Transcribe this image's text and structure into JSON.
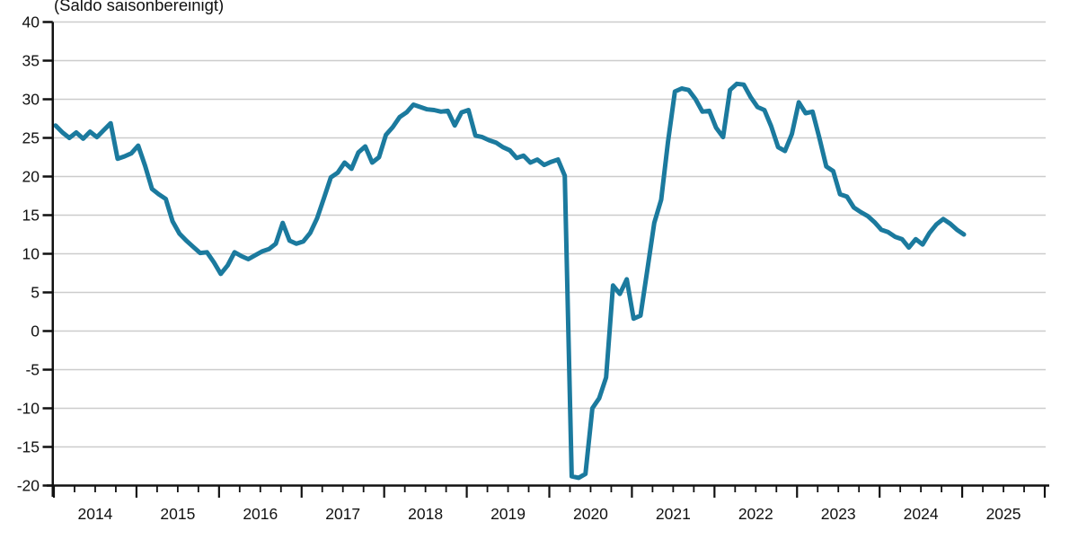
{
  "chart": {
    "subtitle": "(Saldo saisonbereinigt)"
  },
  "chart_data": {
    "type": "line",
    "title": "(Saldo saisonbereinigt)",
    "frequency": "monthly",
    "start": "2014-01",
    "end": "2025-01",
    "x_tick_years": [
      "2014",
      "2015",
      "2016",
      "2017",
      "2018",
      "2019",
      "2020",
      "2021",
      "2022",
      "2023",
      "2024",
      "2025"
    ],
    "x_minor_ticks": "quarterly",
    "y_ticks": [
      40,
      35,
      30,
      25,
      20,
      15,
      10,
      5,
      0,
      -5,
      -10,
      -15,
      -20
    ],
    "ylim": [
      -20,
      40
    ],
    "grid": true,
    "legend": "none",
    "colors": {
      "line": "#1b7a9e",
      "grid": "#cccccc",
      "axis": "#111111",
      "background": "#ffffff"
    },
    "series": [
      {
        "name": "Saldo saisonbereinigt",
        "color": "#1b7a9e",
        "values": [
          26.6,
          25.7,
          25.0,
          25.7,
          24.9,
          25.8,
          25.1,
          26.0,
          26.9,
          22.3,
          22.6,
          23.0,
          24.0,
          21.4,
          18.4,
          17.7,
          17.1,
          14.2,
          12.6,
          11.7,
          10.9,
          10.1,
          10.2,
          8.9,
          7.4,
          8.5,
          10.2,
          9.7,
          9.3,
          9.8,
          10.3,
          10.6,
          11.3,
          14.0,
          11.7,
          11.3,
          11.6,
          12.7,
          14.6,
          17.2,
          19.9,
          20.5,
          21.8,
          21.0,
          23.1,
          23.9,
          21.8,
          22.5,
          25.4,
          26.4,
          27.7,
          28.3,
          29.3,
          29.0,
          28.7,
          28.6,
          28.4,
          28.5,
          26.6,
          28.3,
          28.6,
          25.3,
          25.1,
          24.7,
          24.4,
          23.8,
          23.4,
          22.4,
          22.7,
          21.8,
          22.2,
          21.5,
          21.9,
          22.2,
          20.1,
          -18.8,
          -19.0,
          -18.5,
          -10.0,
          -8.7,
          -6.0,
          5.9,
          4.8,
          6.7,
          1.6,
          2.0,
          8.0,
          14.0,
          17.0,
          24.5,
          31.0,
          31.4,
          31.2,
          30.0,
          28.4,
          28.5,
          26.3,
          25.1,
          31.2,
          32.0,
          31.9,
          30.3,
          29.0,
          28.6,
          26.5,
          23.8,
          23.3,
          25.5,
          29.6,
          28.2,
          28.4,
          25.0,
          21.3,
          20.7,
          17.7,
          17.4,
          16.0,
          15.4,
          14.9,
          14.1,
          13.1,
          12.8,
          12.2,
          11.9,
          10.8,
          11.9,
          11.2,
          12.7,
          13.8,
          14.5,
          13.9,
          13.1,
          12.5
        ]
      }
    ]
  }
}
